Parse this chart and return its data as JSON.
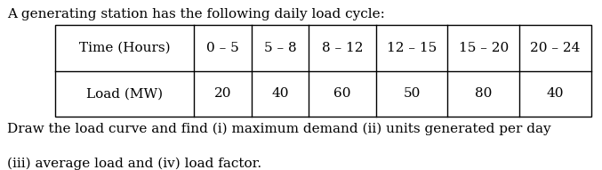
{
  "title_line": "A generating station has the following daily load cycle:",
  "time_header": "Time (Hours)",
  "load_header": "Load (MW)",
  "time_periods": [
    "0 – 5",
    "5 – 8",
    "8 – 12",
    "12 – 15",
    "15 – 20",
    "20 – 24"
  ],
  "load_values": [
    "20",
    "40",
    "60",
    "50",
    "80",
    "40"
  ],
  "footer_line1": "Draw the load curve and find (i) maximum demand (ii) units generated per day",
  "footer_line2": "(iii) average load and (iv) load factor.",
  "bg_color": "#ffffff",
  "text_color": "#000000",
  "font_size": 11.0,
  "table_font_size": 11.0,
  "font_family": "DejaVu Serif",
  "fig_width": 6.77,
  "fig_height": 1.91,
  "dpi": 100
}
